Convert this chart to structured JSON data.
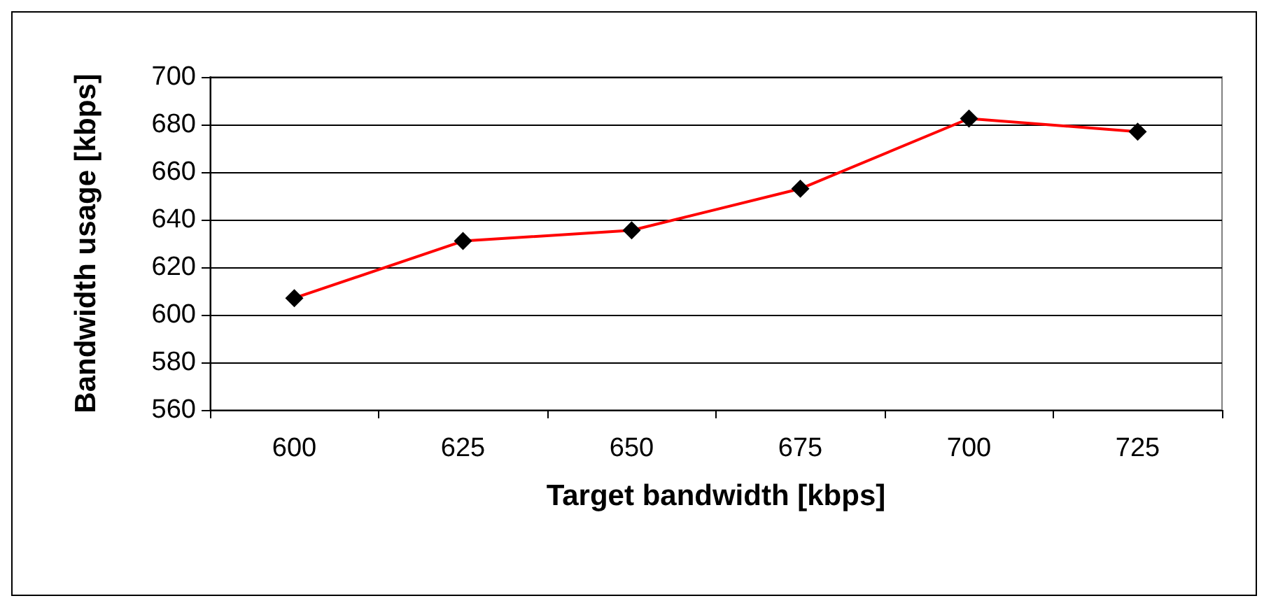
{
  "chart_data": {
    "type": "line",
    "xlabel": "Target bandwidth [kbps]",
    "ylabel": "Bandwidth usage [kbps]",
    "categories": [
      "600",
      "625",
      "650",
      "675",
      "700",
      "725"
    ],
    "series": [
      {
        "color": "#ff0000",
        "values": [
          607,
          631,
          635.5,
          653,
          682.5,
          677
        ]
      }
    ],
    "ylim": [
      560,
      700
    ],
    "yticks": [
      560,
      580,
      600,
      620,
      640,
      660,
      680,
      700
    ],
    "grid": "y",
    "marker": "diamond",
    "line_style": "solid"
  }
}
